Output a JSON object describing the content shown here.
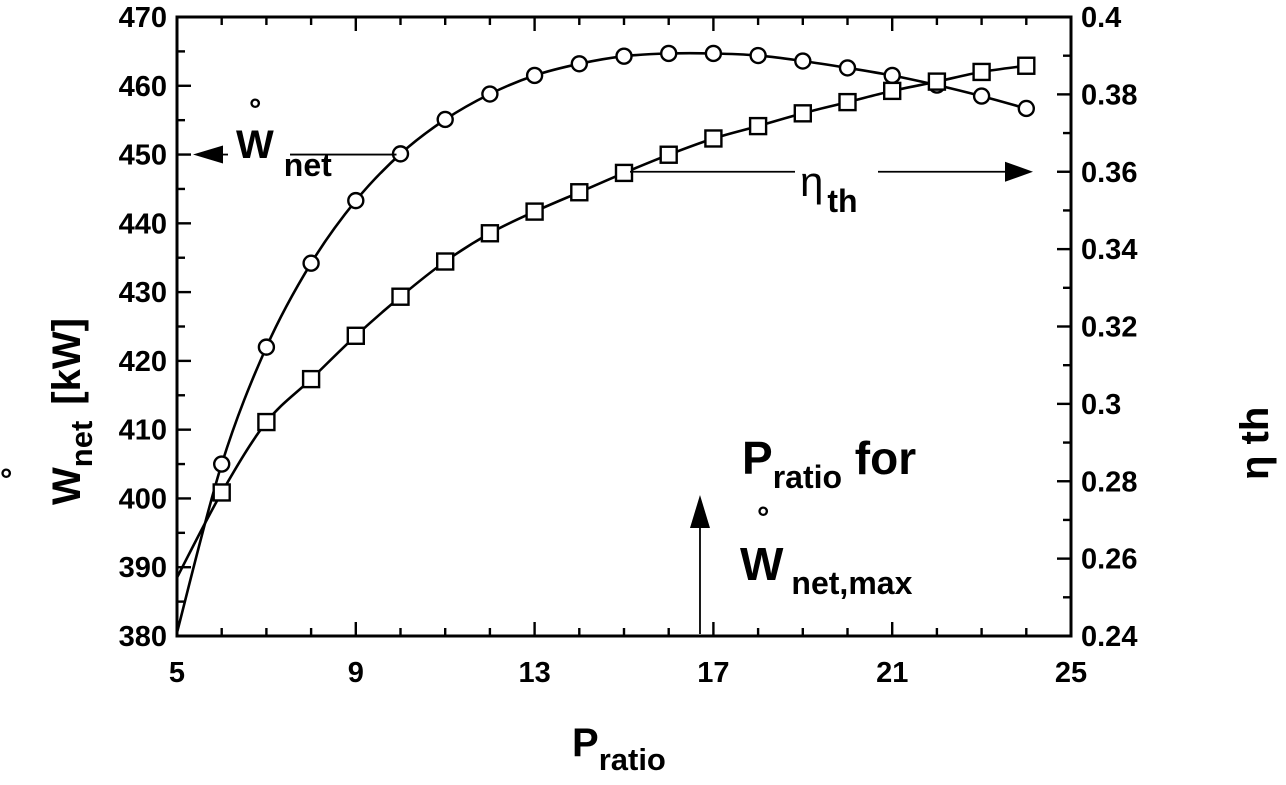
{
  "chart_data": {
    "type": "line",
    "x": [
      5,
      6,
      7,
      8,
      9,
      10,
      11,
      12,
      13,
      14,
      15,
      16,
      17,
      18,
      19,
      20,
      21,
      22,
      23,
      24
    ],
    "xlim": [
      5,
      25
    ],
    "xticks": [
      "5",
      "9",
      "13",
      "17",
      "21",
      "25"
    ],
    "xlabel": {
      "main": "P",
      "sub": "ratio"
    },
    "left_axis": {
      "label": {
        "main": "W",
        "sub": "net",
        "unit": "[kW]"
      },
      "ylim": [
        380,
        470
      ],
      "ticks": [
        "380",
        "390",
        "400",
        "410",
        "420",
        "430",
        "440",
        "450",
        "460",
        "470"
      ]
    },
    "right_axis": {
      "label": {
        "main": "η th"
      },
      "ylim": [
        0.24,
        0.4
      ],
      "ticks": [
        "0.24",
        "0.26",
        "0.28",
        "0.3",
        "0.32",
        "0.34",
        "0.36",
        "0.38",
        "0.4"
      ]
    },
    "series": [
      {
        "name": "W_net",
        "marker": "circle",
        "axis": "left",
        "x": [
          6,
          7,
          8,
          9,
          10,
          11,
          12,
          13,
          14,
          15,
          16,
          17,
          18,
          19,
          20,
          21,
          22,
          23,
          24
        ],
        "values": [
          405.0,
          422.0,
          434.2,
          443.3,
          450.1,
          455.1,
          458.8,
          461.5,
          463.2,
          464.3,
          464.7,
          464.7,
          464.4,
          463.6,
          462.6,
          461.5,
          460.1,
          458.5,
          456.7
        ],
        "curve_x": [
          5,
          6,
          7,
          8,
          9,
          10,
          11,
          12,
          13,
          14,
          15,
          16,
          17,
          18,
          19,
          20,
          21,
          22,
          23,
          24
        ],
        "curve_values": [
          380.5,
          405.0,
          422.0,
          434.2,
          443.3,
          450.1,
          455.1,
          458.8,
          461.5,
          463.2,
          464.3,
          464.7,
          464.7,
          464.4,
          463.6,
          462.6,
          461.5,
          460.1,
          458.5,
          456.7
        ]
      },
      {
        "name": "η_th",
        "marker": "square",
        "axis": "right",
        "x": [
          6,
          7,
          8,
          9,
          10,
          11,
          12,
          13,
          14,
          15,
          16,
          17,
          18,
          19,
          20,
          21,
          22,
          23,
          24
        ],
        "values": [
          0.2771,
          0.2953,
          0.3064,
          0.3176,
          0.3277,
          0.3368,
          0.3441,
          0.3497,
          0.3547,
          0.3597,
          0.3644,
          0.3686,
          0.3718,
          0.3751,
          0.378,
          0.3809,
          0.3833,
          0.3858,
          0.3874
        ],
        "curve_x": [
          5,
          6,
          7,
          8,
          9,
          10,
          11,
          12,
          13,
          14,
          15,
          16,
          17,
          18,
          19,
          20,
          21,
          22,
          23,
          24
        ],
        "curve_values": [
          0.2551,
          0.2771,
          0.2953,
          0.3064,
          0.3176,
          0.3277,
          0.3368,
          0.3441,
          0.3497,
          0.3547,
          0.3597,
          0.3644,
          0.3686,
          0.3718,
          0.3751,
          0.378,
          0.3809,
          0.3833,
          0.3858,
          0.3874
        ]
      }
    ],
    "annotations": {
      "wnet_arrow": {
        "main": "W",
        "sub": "net",
        "points_to": "left axis",
        "at_x": 10,
        "at_y": 450
      },
      "eta_arrow": {
        "main": "η",
        "sub": "th",
        "points_to": "right axis",
        "at_x": 15,
        "at_y": 0.36
      },
      "max_label": {
        "line1_main": "P",
        "line1_sub": "ratio",
        "line1_suffix": " for",
        "line2_main": "W",
        "line2_sub": "net,max"
      },
      "max_arrow_x": 16.7
    },
    "dot_glyph": "°"
  }
}
